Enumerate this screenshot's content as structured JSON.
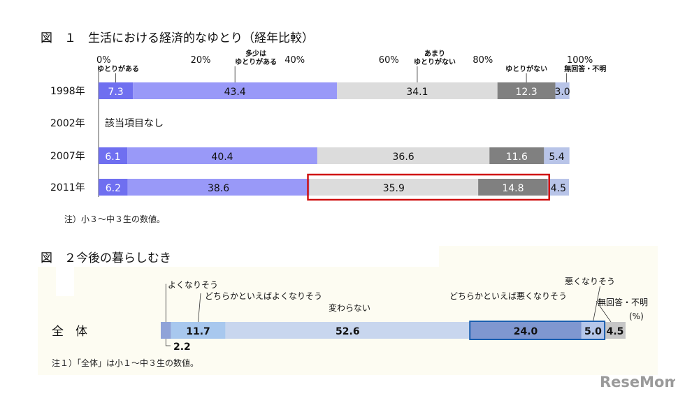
{
  "chart_data": [
    {
      "type": "bar",
      "stacked": true,
      "orientation": "horizontal",
      "title": "図　１　生活における経済的なゆとり（経年比較）",
      "axis_ticks": [
        "0%",
        "20%",
        "40%",
        "60%",
        "80%",
        "100%"
      ],
      "xlim": [
        0,
        100
      ],
      "categories": [
        "1998年",
        "2002年",
        "2007年",
        "2011年"
      ],
      "series": [
        {
          "name": "ゆとりがある",
          "color": "#6f6ff0",
          "values": [
            7.3,
            null,
            6.1,
            6.2
          ]
        },
        {
          "name": "多少は\nゆとりがある",
          "color": "#9999f8",
          "values": [
            43.4,
            null,
            40.4,
            38.6
          ]
        },
        {
          "name": "あまり\nゆとりがない",
          "color": "#dcdcdc",
          "values": [
            34.1,
            null,
            36.6,
            35.9
          ]
        },
        {
          "name": "ゆとりがない",
          "color": "#808080",
          "values": [
            12.3,
            null,
            11.6,
            14.8
          ]
        },
        {
          "name": "無回答・不明",
          "color": "#b8c4e8",
          "values": [
            3.0,
            null,
            5.4,
            4.5
          ]
        }
      ],
      "missing_note": "該当項目なし",
      "footnote": "注）小３～中３生の数値。",
      "highlight": {
        "category": "2011年",
        "series": [
          "あまり\nゆとりがない",
          "ゆとりがない"
        ],
        "color": "#d01010"
      }
    },
    {
      "type": "bar",
      "stacked": true,
      "orientation": "horizontal",
      "title": "図　２今後の暮らしむき",
      "categories": [
        "全　体"
      ],
      "series": [
        {
          "name": "よくなりそう",
          "color": "#8fa3d8",
          "values": [
            2.2
          ]
        },
        {
          "name": "どちらかといえばよくなりそう",
          "color": "#a8c8ee",
          "values": [
            11.7
          ]
        },
        {
          "name": "変わらない",
          "color": "#c8d6ee",
          "values": [
            52.6
          ]
        },
        {
          "name": "どちらかといえば悪くなりそう",
          "color": "#7f97d0",
          "values": [
            24.0
          ]
        },
        {
          "name": "悪くなりそう",
          "color": "#b5c7ea",
          "values": [
            5.0
          ]
        },
        {
          "name": "無回答・不明",
          "color": "#c6c6c6",
          "values": [
            4.5
          ]
        }
      ],
      "unit_label": "(%)",
      "footnote": "注１）「全体」は小１～中３生の数値。",
      "highlight": {
        "category": "全　体",
        "series": [
          "どちらかといえば悪くなりそう",
          "悪くなりそう"
        ],
        "color": "#1a5fb0"
      }
    }
  ],
  "branding": {
    "logo_text": "ReseMom"
  }
}
